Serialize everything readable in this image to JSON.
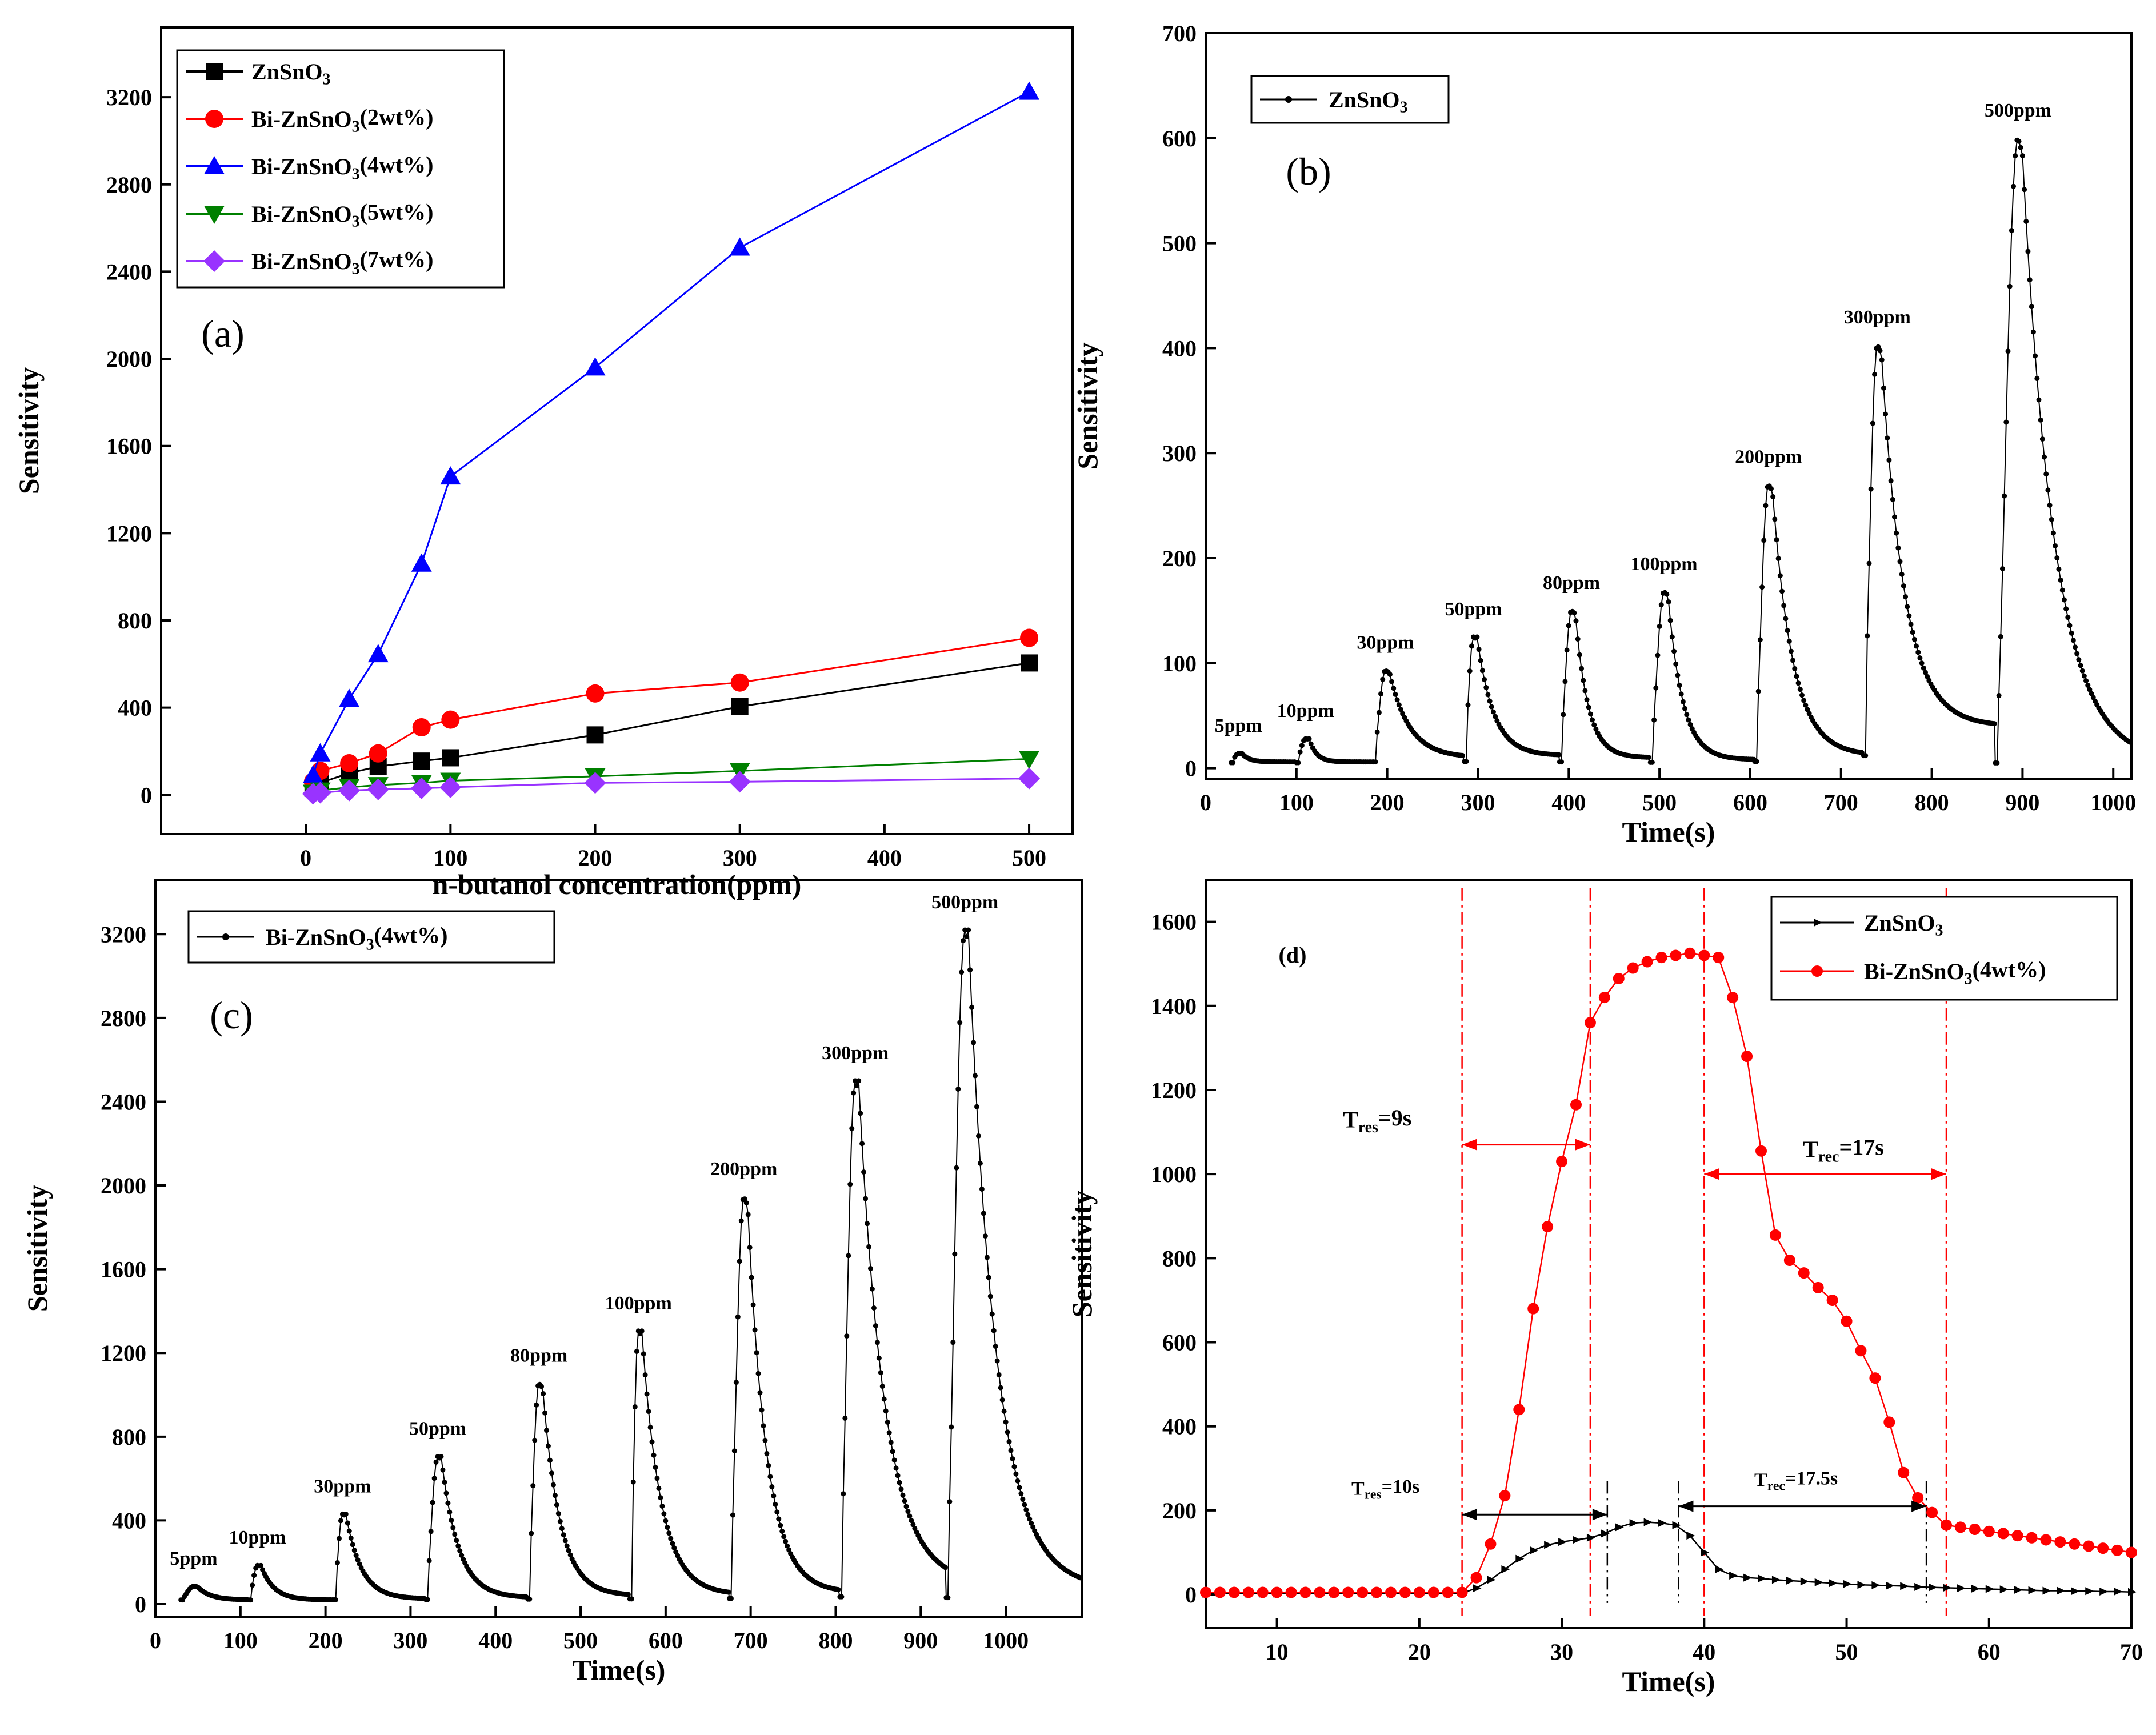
{
  "chart_data": [
    {
      "id": "a",
      "type": "line",
      "panel_label": "(a)",
      "xlabel": "n-butanol concentration(ppm)",
      "ylabel": "Sensitivity",
      "xlim": [
        -100,
        530
      ],
      "ylim": [
        -180,
        3520
      ],
      "xticks": [
        0,
        100,
        200,
        300,
        400,
        500
      ],
      "yticks": [
        0,
        400,
        800,
        1200,
        1600,
        2000,
        2400,
        2800,
        3200
      ],
      "legend_position": "top-left",
      "x": [
        5,
        10,
        30,
        50,
        80,
        100,
        200,
        300,
        500
      ],
      "series": [
        {
          "name": "ZnSnO3",
          "legend_base": "ZnSnO",
          "legend_sub": "3",
          "legend_suffix": "",
          "color": "#000000",
          "marker": "square",
          "values": [
            30,
            55,
            100,
            130,
            155,
            170,
            275,
            405,
            605
          ]
        },
        {
          "name": "Bi-ZnSnO3(2wt%)",
          "legend_base": "Bi-ZnSnO",
          "legend_sub": "3",
          "legend_suffix": "(2wt%)",
          "color": "#ff0000",
          "marker": "circle",
          "values": [
            60,
            110,
            145,
            190,
            310,
            345,
            465,
            515,
            720
          ]
        },
        {
          "name": "Bi-ZnSnO3(4wt%)",
          "legend_base": "Bi-ZnSnO",
          "legend_sub": "3",
          "legend_suffix": "(4wt%)",
          "color": "#0000ff",
          "marker": "triangle-up",
          "values": [
            90,
            190,
            440,
            645,
            1060,
            1460,
            1960,
            2510,
            3225
          ]
        },
        {
          "name": "Bi-ZnSnO3(5wt%)",
          "legend_base": "Bi-ZnSnO",
          "legend_sub": "3",
          "legend_suffix": "(5wt%)",
          "color": "#008000",
          "marker": "triangle-down",
          "values": [
            10,
            20,
            35,
            45,
            55,
            65,
            85,
            110,
            165
          ]
        },
        {
          "name": "Bi-ZnSnO3(7wt%)",
          "legend_base": "Bi-ZnSnO",
          "legend_sub": "3",
          "legend_suffix": "(7wt%)",
          "color": "#9933ff",
          "marker": "diamond",
          "values": [
            5,
            10,
            20,
            25,
            30,
            35,
            55,
            60,
            75
          ]
        }
      ]
    },
    {
      "id": "b",
      "type": "line",
      "panel_label": "(b)",
      "xlabel": "Time(s)",
      "ylabel": "Sensitivity",
      "xlim": [
        0,
        1020
      ],
      "ylim": [
        -10,
        700
      ],
      "xticks": [
        0,
        100,
        200,
        300,
        400,
        500,
        600,
        700,
        800,
        900,
        1000
      ],
      "yticks": [
        0,
        100,
        200,
        300,
        400,
        500,
        600,
        700
      ],
      "legend_position": "top-left",
      "series": [
        {
          "name": "ZnSnO3",
          "legend_base": "ZnSnO",
          "legend_sub": "3",
          "legend_suffix": "",
          "color": "#000000",
          "marker": "dot",
          "baseline": 5,
          "pulses": [
            {
              "label": "5ppm",
              "t0": 28,
              "tpeak": 36,
              "peak": 14,
              "tend": 100,
              "tail": 6,
              "tau": 8
            },
            {
              "label": "10ppm",
              "t0": 100,
              "tpeak": 110,
              "peak": 28,
              "tend": 185,
              "tail": 6,
              "tau": 8
            },
            {
              "label": "30ppm",
              "t0": 185,
              "tpeak": 198,
              "peak": 93,
              "tend": 285,
              "tail": 10,
              "tau": 22
            },
            {
              "label": "50ppm",
              "t0": 285,
              "tpeak": 295,
              "peak": 125,
              "tend": 390,
              "tail": 12,
              "tau": 18
            },
            {
              "label": "80ppm",
              "t0": 390,
              "tpeak": 403,
              "peak": 150,
              "tend": 490,
              "tail": 10,
              "tau": 14
            },
            {
              "label": "100ppm",
              "t0": 490,
              "tpeak": 505,
              "peak": 168,
              "tend": 605,
              "tail": 8,
              "tau": 16
            },
            {
              "label": "200ppm",
              "t0": 605,
              "tpeak": 620,
              "peak": 270,
              "tend": 725,
              "tail": 12,
              "tau": 22
            },
            {
              "label": "300ppm",
              "t0": 725,
              "tpeak": 740,
              "peak": 403,
              "tend": 870,
              "tail": 40,
              "tau": 25
            },
            {
              "label": "500ppm",
              "t0": 870,
              "tpeak": 895,
              "peak": 600,
              "tend": 1020,
              "tail": 5,
              "tau": 35
            }
          ]
        }
      ]
    },
    {
      "id": "c",
      "type": "line",
      "panel_label": "(c)",
      "xlabel": "Time(s)",
      "ylabel": "Sensitivity",
      "xlim": [
        0,
        1090
      ],
      "ylim": [
        -60,
        3460
      ],
      "xticks": [
        0,
        100,
        200,
        300,
        400,
        500,
        600,
        700,
        800,
        900,
        1000
      ],
      "yticks": [
        0,
        400,
        800,
        1200,
        1600,
        2000,
        2400,
        2800,
        3200
      ],
      "legend_position": "top-left",
      "series": [
        {
          "name": "Bi-ZnSnO3(4wt%)",
          "legend_base": "Bi-ZnSnO",
          "legend_sub": "3",
          "legend_suffix": "(4wt%)",
          "color": "#000000",
          "marker": "dot",
          "baseline": 20,
          "pulses": [
            {
              "label": "5ppm",
              "t0": 30,
              "tpeak": 45,
              "peak": 85,
              "tend": 110,
              "tail": 20,
              "tau": 15
            },
            {
              "label": "10ppm",
              "t0": 110,
              "tpeak": 120,
              "peak": 185,
              "tend": 210,
              "tail": 20,
              "tau": 15
            },
            {
              "label": "30ppm",
              "t0": 210,
              "tpeak": 220,
              "peak": 430,
              "tend": 318,
              "tail": 25,
              "tau": 18
            },
            {
              "label": "50ppm",
              "t0": 318,
              "tpeak": 332,
              "peak": 705,
              "tend": 438,
              "tail": 30,
              "tau": 20
            },
            {
              "label": "80ppm",
              "t0": 438,
              "tpeak": 451,
              "peak": 1055,
              "tend": 558,
              "tail": 40,
              "tau": 20
            },
            {
              "label": "100ppm",
              "t0": 558,
              "tpeak": 568,
              "peak": 1305,
              "tend": 675,
              "tail": 45,
              "tau": 22
            },
            {
              "label": "200ppm",
              "t0": 675,
              "tpeak": 692,
              "peak": 1945,
              "tend": 805,
              "tail": 55,
              "tau": 22
            },
            {
              "label": "300ppm",
              "t0": 805,
              "tpeak": 823,
              "peak": 2500,
              "tend": 930,
              "tail": 95,
              "tau": 30
            },
            {
              "label": "500ppm",
              "t0": 930,
              "tpeak": 952,
              "peak": 3220,
              "tend": 1090,
              "tail": 75,
              "tau": 32
            }
          ]
        }
      ]
    },
    {
      "id": "d",
      "type": "line",
      "panel_label": "(d)",
      "xlabel": "Time(s)",
      "ylabel": "Sensitivity",
      "xlim": [
        5,
        70
      ],
      "ylim": [
        -80,
        1700
      ],
      "xticks": [
        10,
        20,
        30,
        40,
        50,
        60,
        70
      ],
      "yticks": [
        0,
        200,
        400,
        600,
        800,
        1000,
        1200,
        1400,
        1600
      ],
      "legend_position": "top-right",
      "series": [
        {
          "name": "ZnSnO3",
          "legend_base": "ZnSnO",
          "legend_sub": "3",
          "legend_suffix": "",
          "color": "#000000",
          "marker": "triangle-right",
          "x": [
            5,
            6,
            7,
            8,
            9,
            10,
            11,
            12,
            13,
            14,
            15,
            16,
            17,
            18,
            19,
            20,
            21,
            22,
            23,
            24,
            25,
            26,
            27,
            28,
            29,
            30,
            31,
            32,
            33,
            34,
            35,
            36,
            37,
            38,
            39,
            40,
            41,
            42,
            43,
            44,
            45,
            46,
            47,
            48,
            49,
            50,
            51,
            52,
            53,
            54,
            55,
            56,
            57,
            58,
            59,
            60,
            61,
            62,
            63,
            64,
            65,
            66,
            67,
            68,
            69,
            70
          ],
          "values": [
            2,
            2,
            2,
            2,
            2,
            2,
            2,
            2,
            2,
            2,
            2,
            2,
            2,
            2,
            2,
            2,
            2,
            2,
            3,
            15,
            35,
            60,
            85,
            105,
            118,
            125,
            130,
            135,
            145,
            160,
            170,
            172,
            170,
            165,
            140,
            100,
            60,
            45,
            40,
            38,
            35,
            33,
            31,
            29,
            27,
            25,
            23,
            22,
            21,
            20,
            18,
            17,
            16,
            15,
            14,
            13,
            12,
            11,
            10,
            9,
            9,
            8,
            8,
            7,
            7,
            6
          ]
        },
        {
          "name": "Bi-ZnSnO3(4wt%)",
          "legend_base": "Bi-ZnSnO",
          "legend_sub": "3",
          "legend_suffix": "(4wt%)",
          "color": "#ff0000",
          "marker": "circle",
          "x": [
            5,
            6,
            7,
            8,
            9,
            10,
            11,
            12,
            13,
            14,
            15,
            16,
            17,
            18,
            19,
            20,
            21,
            22,
            23,
            24,
            25,
            26,
            27,
            28,
            29,
            30,
            31,
            32,
            33,
            34,
            35,
            36,
            37,
            38,
            39,
            40,
            41,
            42,
            43,
            44,
            45,
            46,
            47,
            48,
            49,
            50,
            51,
            52,
            53,
            54,
            55,
            56,
            57,
            58,
            59,
            60,
            61,
            62,
            63,
            64,
            65,
            66,
            67,
            68,
            69,
            70
          ],
          "values": [
            5,
            5,
            5,
            5,
            5,
            5,
            5,
            5,
            5,
            5,
            5,
            5,
            5,
            5,
            5,
            5,
            5,
            5,
            5,
            40,
            120,
            235,
            440,
            680,
            875,
            1030,
            1165,
            1360,
            1420,
            1465,
            1490,
            1505,
            1515,
            1520,
            1525,
            1520,
            1515,
            1420,
            1280,
            1055,
            855,
            795,
            765,
            730,
            700,
            650,
            580,
            515,
            410,
            290,
            230,
            195,
            165,
            160,
            155,
            150,
            145,
            140,
            135,
            130,
            125,
            120,
            115,
            110,
            105,
            100
          ]
        }
      ],
      "vlines": [
        23,
        32,
        33.2,
        38.2,
        40,
        55.6,
        57
      ],
      "annotations": {
        "bi_response": {
          "label_base": "T",
          "label_sub": "res",
          "label_rest": "=9s",
          "from": 23,
          "to": 32,
          "y": 1070
        },
        "bi_recovery": {
          "label_base": "T",
          "label_sub": "rec",
          "label_rest": "=17s",
          "from": 40,
          "to": 57,
          "y": 1000
        },
        "zn_response": {
          "label_base": "T",
          "label_sub": "res",
          "label_rest": "=10s",
          "from": 23,
          "to": 33.2,
          "y": 190
        },
        "zn_recovery": {
          "label_base": "T",
          "label_sub": "rec",
          "label_rest": "=17.5s",
          "from": 38.2,
          "to": 55.6,
          "y": 210
        }
      }
    }
  ]
}
